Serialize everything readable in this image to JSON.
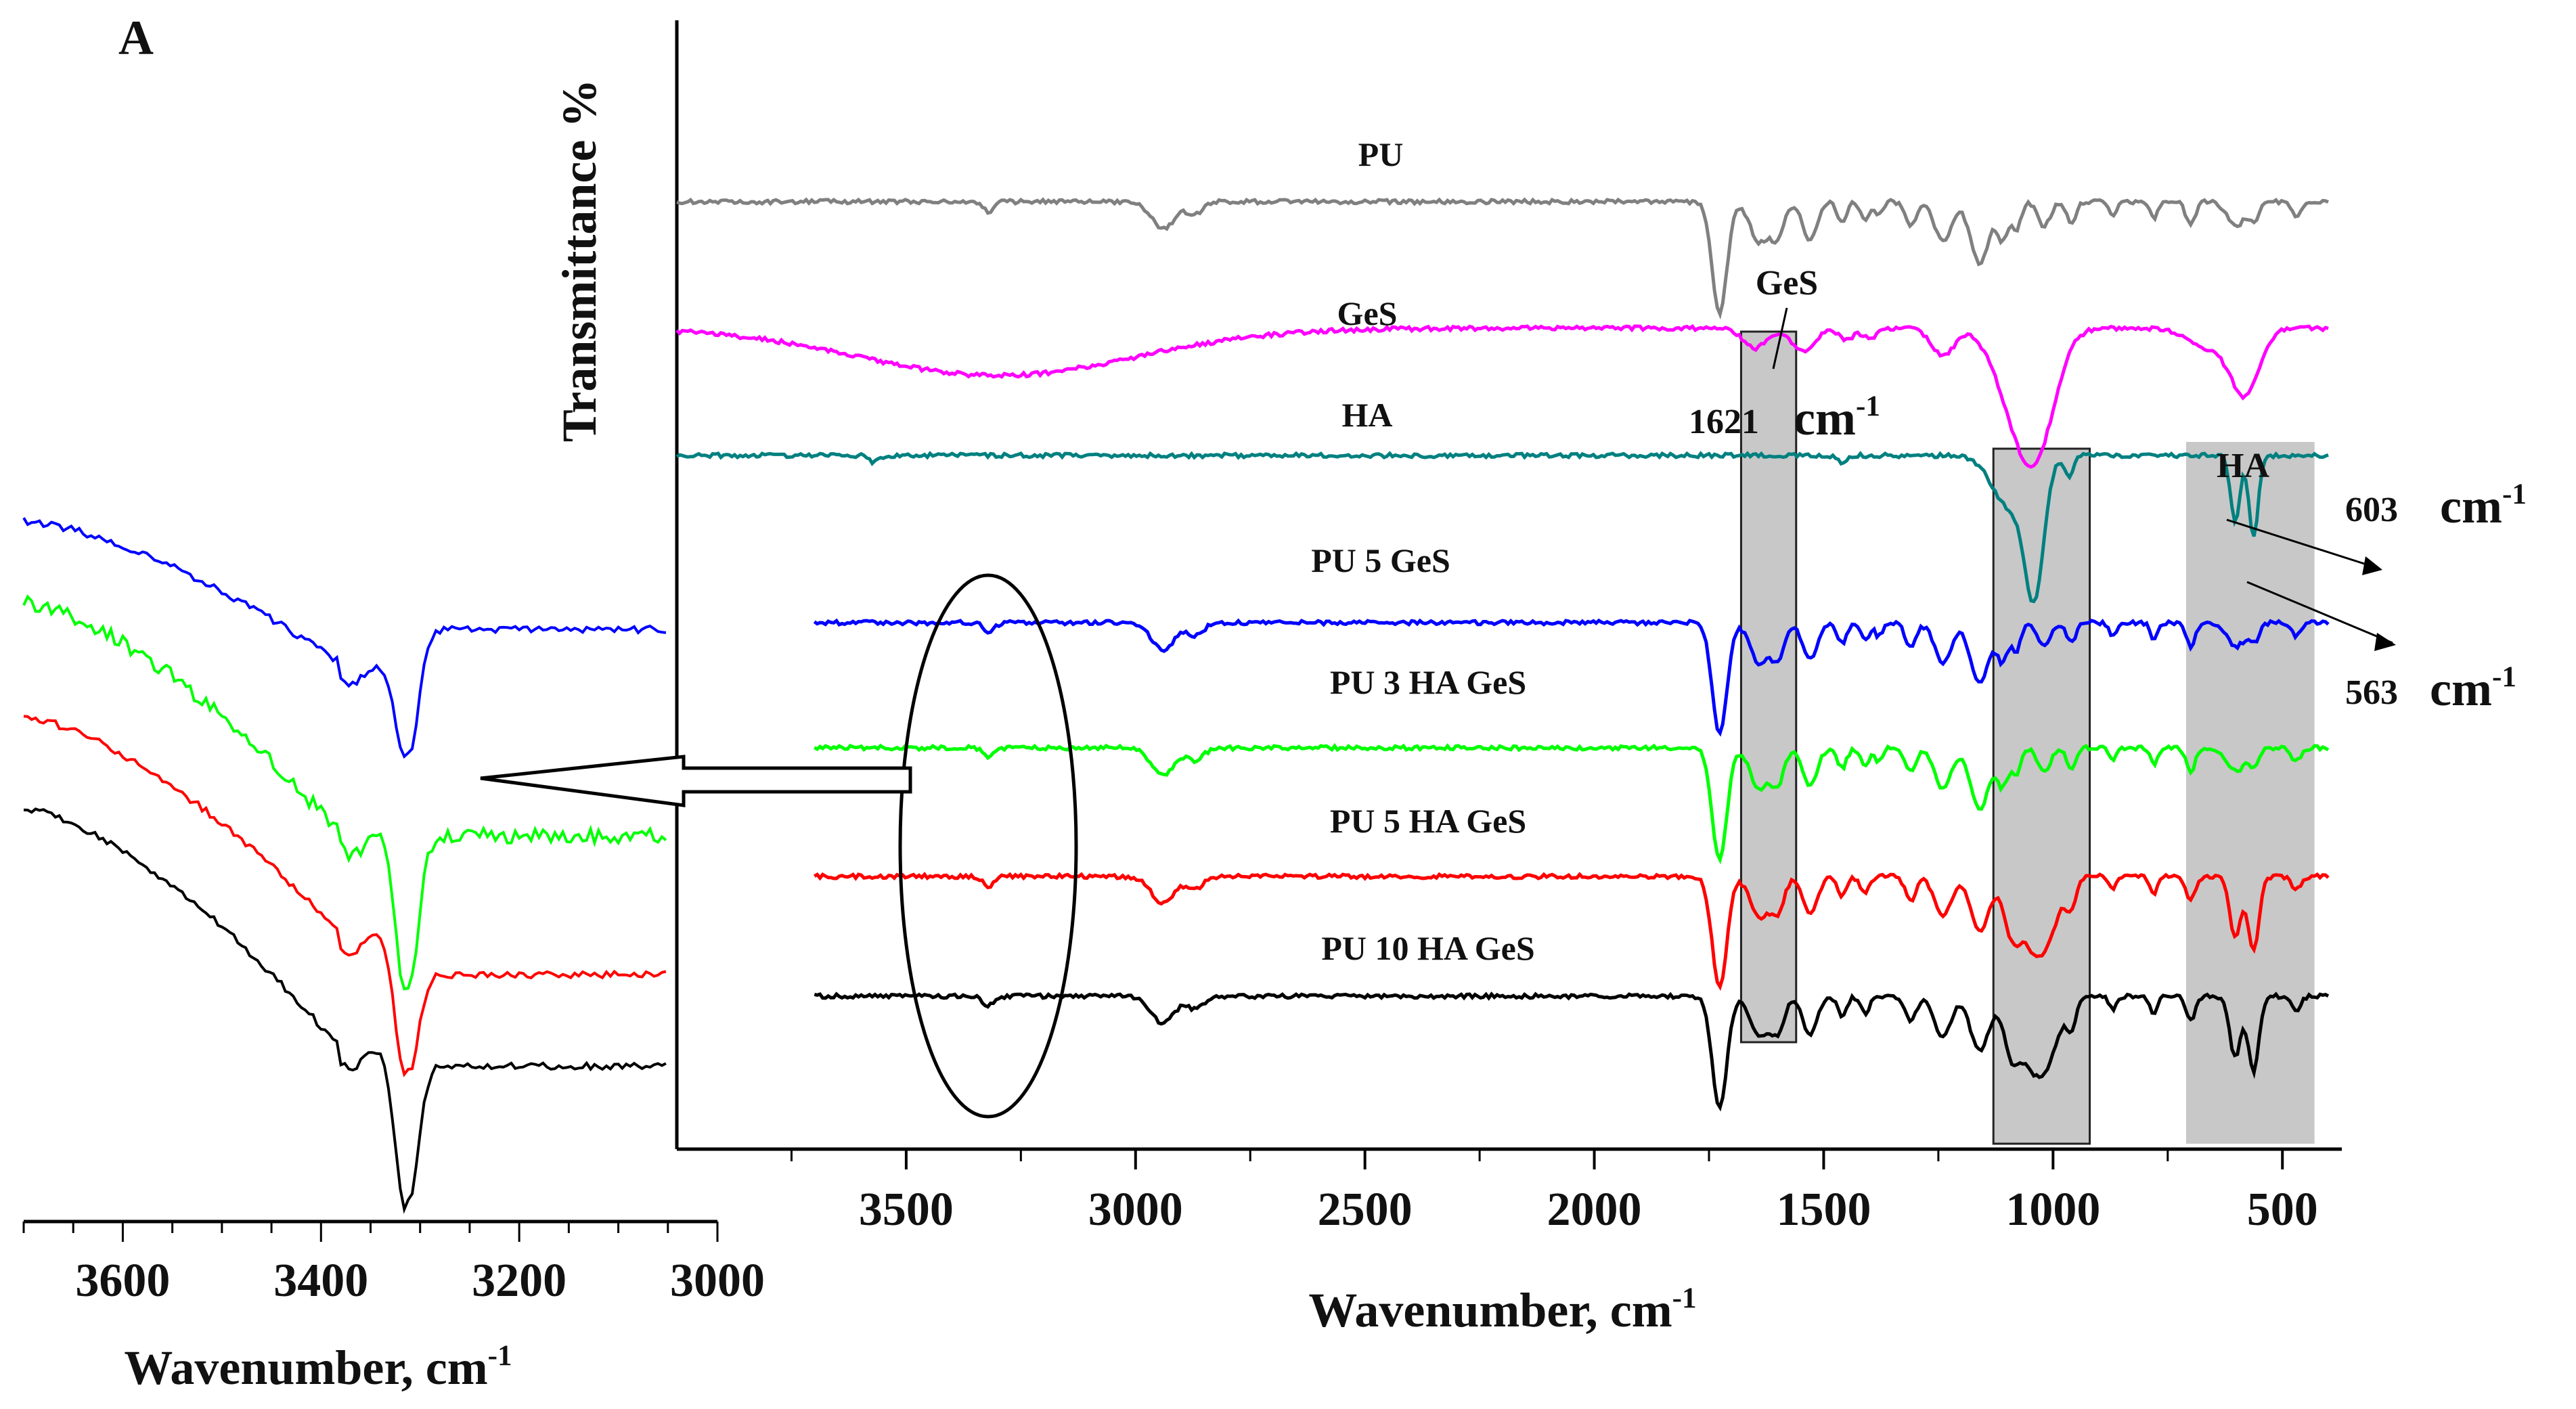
{
  "panel_label": "A",
  "chart_data": [
    {
      "type": "line",
      "id": "main",
      "title": "",
      "xlabel": "Wavenumber, cm",
      "xlabel_sup": "-1",
      "ylabel": "Transmittance %",
      "xlim": [
        4000,
        400
      ],
      "x_ticks": [
        3500,
        3000,
        2500,
        2000,
        1500,
        1000,
        500
      ],
      "x_tick_labels": [
        "3500",
        "3000",
        "2500",
        "2000",
        "1500",
        "1000",
        "500"
      ],
      "series": [
        {
          "name": "PU",
          "color": "#808080",
          "x_range": [
            4000,
            400
          ],
          "offset": 0,
          "profile": "pu"
        },
        {
          "name": "GeS",
          "color": "#ff00ff",
          "x_range": [
            4000,
            400
          ],
          "offset": 1,
          "profile": "ges"
        },
        {
          "name": "HA",
          "color": "#008080",
          "x_range": [
            4000,
            400
          ],
          "offset": 2,
          "profile": "ha"
        },
        {
          "name": "PU 5 GeS",
          "color": "#0000ff",
          "x_range": [
            3700,
            400
          ],
          "offset": 3,
          "profile": "pu"
        },
        {
          "name": "PU 3 HA GeS",
          "color": "#00ff00",
          "x_range": [
            3700,
            400
          ],
          "offset": 4,
          "profile": "pu"
        },
        {
          "name": "PU 5 HA  GeS",
          "color": "#ff0000",
          "x_range": [
            3700,
            400
          ],
          "offset": 5,
          "profile": "puha"
        },
        {
          "name": "PU 10 HA GeS",
          "color": "#000000",
          "x_range": [
            3700,
            400
          ],
          "offset": 6,
          "profile": "puha"
        }
      ],
      "highlight_bands": [
        {
          "label": "GeS",
          "x_range": [
            1680,
            1560
          ]
        },
        {
          "label": "",
          "x_range": [
            1130,
            920
          ]
        },
        {
          "label": "HA",
          "x_range": [
            710,
            430
          ]
        }
      ],
      "annotations": [
        {
          "text": "GeS",
          "value": ""
        },
        {
          "text": "1621",
          "value": "cm",
          "sup": "-1"
        },
        {
          "text": "HA",
          "value": ""
        },
        {
          "text": "603",
          "value": "cm",
          "sup": "-1"
        },
        {
          "text": "563",
          "value": "cm",
          "sup": "-1"
        }
      ]
    },
    {
      "type": "line",
      "id": "inset",
      "title": "",
      "xlabel": "Wavenumber,  cm",
      "xlabel_sup": "-1",
      "ylabel": "",
      "xlim": [
        3700,
        3000
      ],
      "x_ticks": [
        3600,
        3400,
        3200,
        3000
      ],
      "x_tick_labels": [
        "3600",
        "3400",
        "3200",
        "3000"
      ],
      "series": [
        {
          "name": "PU 5 GeS",
          "color": "#0000ff",
          "x_range": [
            3700,
            3050
          ],
          "min_x": 3310
        },
        {
          "name": "PU 3 HA GeS",
          "color": "#00ff00",
          "x_range": [
            3700,
            3050
          ],
          "min_x": 3310
        },
        {
          "name": "PU 5 HA  GeS",
          "color": "#ff0000",
          "x_range": [
            3700,
            3050
          ],
          "min_x": 3310
        },
        {
          "name": "PU 10 HA GeS",
          "color": "#000000",
          "x_range": [
            3700,
            3050
          ],
          "min_x": 3310
        }
      ]
    }
  ]
}
